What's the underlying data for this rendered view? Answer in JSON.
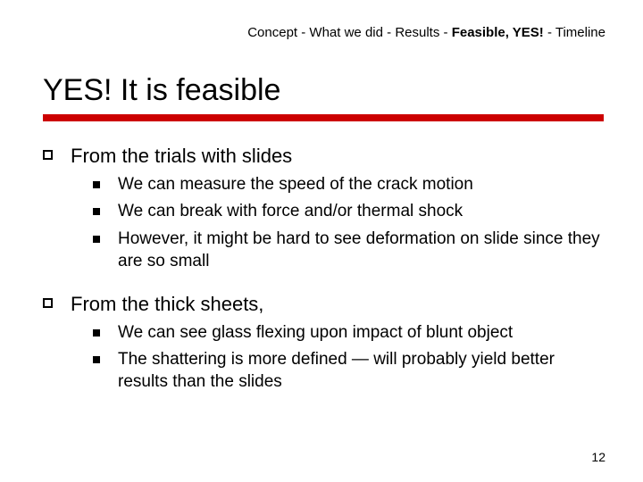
{
  "colors": {
    "accent": "#cc0000",
    "text": "#000000",
    "background": "#ffffff"
  },
  "breadcrumb": {
    "items": [
      {
        "label": "Concept",
        "bold": false
      },
      {
        "label": "What we did",
        "bold": false
      },
      {
        "label": "Results",
        "bold": false
      },
      {
        "label": "Feasible, YES!",
        "bold": true
      },
      {
        "label": "Timeline",
        "bold": false
      }
    ],
    "sep": " - "
  },
  "title": "YES! It is feasible",
  "sections": [
    {
      "heading": "From the trials with slides",
      "items": [
        "We can measure the speed of the crack motion",
        "We can break with force and/or thermal shock",
        "However, it might be hard to see deformation on slide since they are so small"
      ]
    },
    {
      "heading": "From the thick sheets,",
      "items": [
        "We can see glass flexing upon impact of blunt object",
        "The shattering is more defined — will probably yield better results than the slides"
      ]
    }
  ],
  "page_number": "12"
}
